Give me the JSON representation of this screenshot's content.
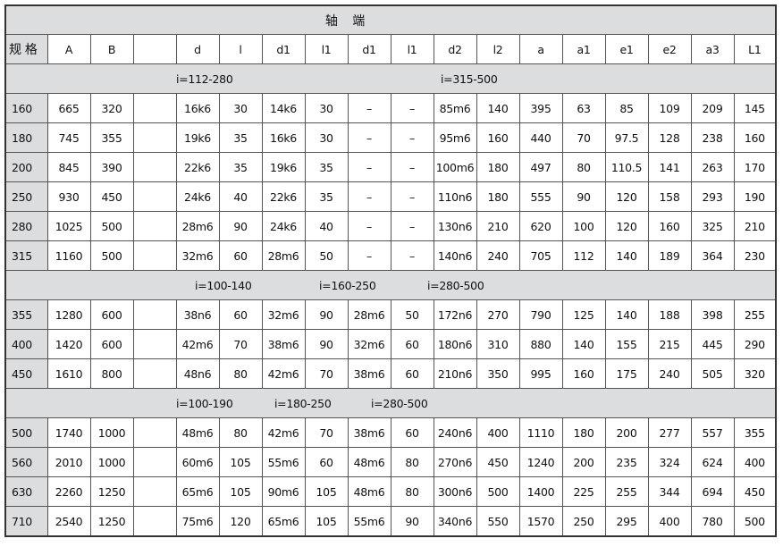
{
  "title": "轴 端",
  "headers": [
    "规 格",
    "A",
    "B",
    "",
    "d",
    "l",
    "d1",
    "l1",
    "d1",
    "l1",
    "d2",
    "l2",
    "a",
    "a1",
    "e1",
    "e2",
    "a3",
    "L1"
  ],
  "groups": [
    {
      "ratios": [
        "i=112-280",
        "i=315-500"
      ],
      "rows": [
        [
          "160",
          "665",
          "320",
          "",
          "16k6",
          "30",
          "14k6",
          "30",
          "–",
          "–",
          "85m6",
          "140",
          "395",
          "63",
          "85",
          "109",
          "209",
          "145"
        ],
        [
          "180",
          "745",
          "355",
          "",
          "19k6",
          "35",
          "16k6",
          "30",
          "–",
          "–",
          "95m6",
          "160",
          "440",
          "70",
          "97.5",
          "128",
          "238",
          "160"
        ],
        [
          "200",
          "845",
          "390",
          "",
          "22k6",
          "35",
          "19k6",
          "35",
          "–",
          "–",
          "100m6",
          "180",
          "497",
          "80",
          "110.5",
          "141",
          "263",
          "170"
        ],
        [
          "250",
          "930",
          "450",
          "",
          "24k6",
          "40",
          "22k6",
          "35",
          "–",
          "–",
          "110n6",
          "180",
          "555",
          "90",
          "120",
          "158",
          "293",
          "190"
        ],
        [
          "280",
          "1025",
          "500",
          "",
          "28m6",
          "90",
          "24k6",
          "40",
          "–",
          "–",
          "130n6",
          "210",
          "620",
          "100",
          "120",
          "160",
          "325",
          "210"
        ],
        [
          "315",
          "1160",
          "500",
          "",
          "32m6",
          "60",
          "28m6",
          "50",
          "–",
          "–",
          "140n6",
          "240",
          "705",
          "112",
          "140",
          "189",
          "364",
          "230"
        ]
      ]
    },
    {
      "ratios": [
        "i=100-140",
        "i=160-250",
        "i=280-500"
      ],
      "rows": [
        [
          "355",
          "1280",
          "600",
          "",
          "38n6",
          "60",
          "32m6",
          "90",
          "28m6",
          "50",
          "172n6",
          "270",
          "790",
          "125",
          "140",
          "188",
          "398",
          "255"
        ],
        [
          "400",
          "1420",
          "600",
          "",
          "42m6",
          "70",
          "38m6",
          "90",
          "32m6",
          "60",
          "180n6",
          "310",
          "880",
          "140",
          "155",
          "215",
          "445",
          "290"
        ],
        [
          "450",
          "1610",
          "800",
          "",
          "48n6",
          "80",
          "42m6",
          "70",
          "38m6",
          "60",
          "210n6",
          "350",
          "995",
          "160",
          "175",
          "240",
          "505",
          "320"
        ]
      ]
    },
    {
      "ratios": [
        "i=100-190",
        "i=180-250",
        "i=280-500"
      ],
      "rows": [
        [
          "500",
          "1740",
          "1000",
          "",
          "48m6",
          "80",
          "42m6",
          "70",
          "38m6",
          "60",
          "240n6",
          "400",
          "1110",
          "180",
          "200",
          "277",
          "557",
          "355"
        ],
        [
          "560",
          "2010",
          "1000",
          "",
          "60m6",
          "105",
          "55m6",
          "60",
          "48m6",
          "80",
          "270n6",
          "450",
          "1240",
          "200",
          "235",
          "324",
          "624",
          "400"
        ],
        [
          "630",
          "2260",
          "1250",
          "",
          "65m6",
          "105",
          "90m6",
          "105",
          "48m6",
          "80",
          "300n6",
          "500",
          "1400",
          "225",
          "255",
          "344",
          "694",
          "450"
        ],
        [
          "710",
          "2540",
          "1250",
          "",
          "75m6",
          "120",
          "65m6",
          "105",
          "55m6",
          "90",
          "340n6",
          "550",
          "1570",
          "250",
          "295",
          "400",
          "780",
          "500"
        ]
      ]
    }
  ]
}
